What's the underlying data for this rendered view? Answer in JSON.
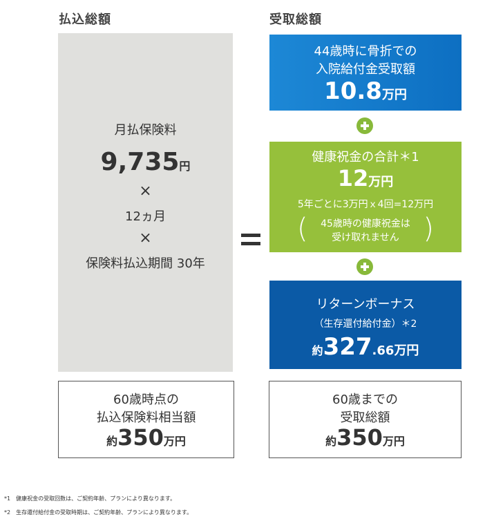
{
  "headers": {
    "left": "払込総額",
    "right": "受取総額"
  },
  "paid": {
    "label": "月払保険料",
    "amount": "9,735",
    "amount_unit": "円",
    "times1": "×",
    "months": "12ヵ月",
    "times2": "×",
    "period": "保険料払込期間 30年"
  },
  "equals": "=",
  "benefits": {
    "fracture": {
      "line1": "44歳時に骨折での",
      "line2": "入院給付金受取額",
      "amount": "10.8",
      "unit": "万円"
    },
    "health": {
      "title": "健康祝金の合計＊1",
      "amount": "12",
      "unit": "万円",
      "calc": "5年ごとに3万円ｘ4回=12万円",
      "note_line1": "45歳時の健康祝金は",
      "note_line2": "受け取れません"
    },
    "return": {
      "line1": "リターンボーナス",
      "line2": "（生存還付給付金）＊2",
      "prefix": "約",
      "amount_int": "327",
      "amount_dec": ".66",
      "unit": "万円"
    }
  },
  "summary_paid": {
    "line1": "60歳時点の",
    "line2": "払込保険料相当額",
    "prefix": "約",
    "amount": "350",
    "unit": "万円"
  },
  "summary_received": {
    "line1": "60歳までの",
    "line2": "受取総額",
    "prefix": "約",
    "amount": "350",
    "unit": "万円"
  },
  "footnotes": [
    "*1　健康祝金の受取回数は、ご契約年齢、プランにより異なります。",
    "*2　生存還付給付金の受取時期は、ご契約年齢、プランにより異なります。"
  ],
  "colors": {
    "paid_bg": "#e0e0dd",
    "fracture_bg": "#1d88d6",
    "health_bg": "#96c03b",
    "return_bg": "#0b5aa6",
    "plus": "#88b93a"
  },
  "icons": [
    "plus-icon",
    "plus-icon"
  ],
  "chart_data": {
    "type": "table",
    "title": "",
    "columns": [
      "払込総額",
      "受取総額"
    ],
    "paid": {
      "monthly_premium_yen": 9735,
      "months": 12,
      "years": 30,
      "total_approx_man_yen": 350
    },
    "received": {
      "components": [
        {
          "name": "44歳時に骨折での入院給付金受取額",
          "value_man_yen": 10.8
        },
        {
          "name": "健康祝金の合計",
          "value_man_yen": 12
        },
        {
          "name": "リターンボーナス（生存還付給付金）",
          "value_man_yen": 327.66
        }
      ],
      "total_approx_man_yen": 350
    }
  }
}
